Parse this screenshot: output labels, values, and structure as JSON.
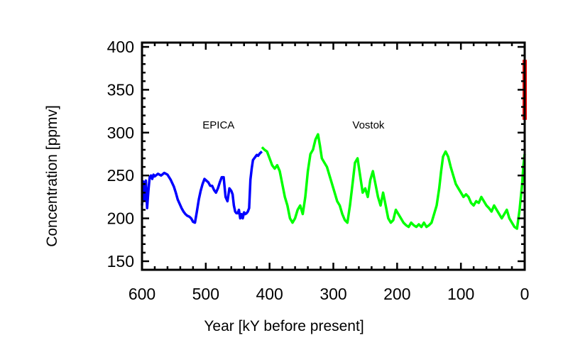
{
  "chart_data": {
    "type": "line",
    "title": "",
    "xlabel": "Year [kY before present]",
    "ylabel": "Concentration [ppmv]",
    "xlim": [
      600,
      0
    ],
    "ylim": [
      140,
      405
    ],
    "xticks": [
      600,
      500,
      400,
      300,
      200,
      100,
      0
    ],
    "yticks": [
      150,
      200,
      250,
      300,
      350,
      400
    ],
    "grid": false,
    "legend": "none",
    "annotations": [
      {
        "text": "EPICA",
        "x": 480,
        "y": 300
      },
      {
        "text": "Vostok",
        "x": 245,
        "y": 300
      }
    ],
    "series": [
      {
        "color": "#0000ff",
        "x": [
          600,
          598,
          596,
          594,
          592,
          590,
          588,
          586,
          584,
          582,
          580,
          575,
          570,
          565,
          560,
          555,
          550,
          547,
          544,
          541,
          538,
          535,
          532,
          529,
          526,
          523,
          520,
          517,
          514,
          511,
          508,
          505,
          502,
          499,
          496,
          493,
          490,
          487,
          484,
          481,
          478,
          475,
          472,
          469,
          466,
          463,
          460,
          458,
          456,
          454,
          452,
          450,
          448,
          446,
          444,
          442,
          440,
          438,
          436,
          434,
          432,
          430,
          428,
          426,
          424,
          422,
          420,
          418,
          415,
          412
        ],
        "y": [
          215,
          243,
          222,
          244,
          212,
          232,
          248,
          250,
          246,
          251,
          249,
          252,
          250,
          253,
          251,
          245,
          237,
          230,
          222,
          217,
          212,
          208,
          205,
          203,
          202,
          200,
          196,
          195,
          208,
          222,
          232,
          240,
          246,
          244,
          242,
          238,
          238,
          233,
          230,
          235,
          242,
          248,
          248,
          225,
          220,
          235,
          232,
          228,
          215,
          208,
          206,
          206,
          210,
          200,
          205,
          200,
          207,
          205,
          206,
          208,
          212,
          245,
          258,
          268,
          270,
          272,
          274,
          273,
          276,
          278
        ]
      },
      {
        "color": "#00ff00",
        "x": [
          412,
          408,
          404,
          400,
          396,
          392,
          388,
          384,
          380,
          376,
          372,
          368,
          364,
          360,
          356,
          352,
          348,
          344,
          340,
          336,
          332,
          328,
          324,
          321,
          318,
          314,
          310,
          306,
          302,
          298,
          294,
          290,
          286,
          282,
          278,
          274,
          270,
          266,
          262,
          258,
          254,
          250,
          246,
          242,
          238,
          234,
          230,
          226,
          222,
          218,
          214,
          210,
          206,
          202,
          198,
          194,
          190,
          186,
          182,
          178,
          174,
          170,
          166,
          162,
          158,
          154,
          150,
          146,
          142,
          138,
          134,
          131,
          128,
          124,
          120,
          116,
          112,
          108,
          104,
          100,
          96,
          92,
          88,
          84,
          80,
          76,
          72,
          68,
          64,
          60,
          56,
          52,
          48,
          44,
          40,
          36,
          32,
          28,
          24,
          20,
          16,
          12,
          8,
          4,
          2,
          0
        ],
        "y": [
          283,
          280,
          278,
          270,
          262,
          258,
          262,
          255,
          240,
          225,
          215,
          200,
          195,
          200,
          210,
          215,
          205,
          225,
          255,
          275,
          280,
          292,
          298,
          285,
          270,
          265,
          260,
          250,
          240,
          230,
          220,
          215,
          205,
          198,
          195,
          215,
          240,
          265,
          270,
          250,
          230,
          235,
          225,
          245,
          255,
          240,
          225,
          215,
          230,
          215,
          200,
          195,
          198,
          210,
          205,
          200,
          195,
          192,
          190,
          195,
          192,
          190,
          193,
          190,
          195,
          190,
          192,
          195,
          205,
          215,
          235,
          255,
          272,
          278,
          272,
          260,
          250,
          240,
          235,
          230,
          225,
          228,
          225,
          218,
          215,
          220,
          218,
          225,
          220,
          215,
          212,
          208,
          215,
          210,
          205,
          200,
          205,
          210,
          200,
          195,
          190,
          188,
          210,
          240,
          262,
          275
        ]
      },
      {
        "color": "#ff0000",
        "x": [
          0,
          0
        ],
        "y": [
          315,
          385
        ]
      }
    ]
  }
}
